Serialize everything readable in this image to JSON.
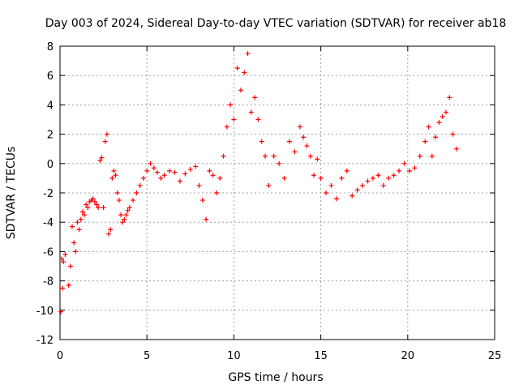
{
  "chart_data": {
    "type": "scatter",
    "title": "Day 003 of 2024, Sidereal Day-to-day VTEC variation (SDTVAR) for receiver ab18",
    "xlabel": "GPS time / hours",
    "ylabel": "SDTVAR / TECUs",
    "xlim": [
      0,
      25
    ],
    "ylim": [
      -12,
      8
    ],
    "x_ticks": [
      0,
      5,
      10,
      15,
      20,
      25
    ],
    "x_tick_labels": [
      "0",
      "5",
      "10",
      "15",
      "20",
      "25"
    ],
    "y_ticks": [
      -12,
      -10,
      -8,
      -6,
      -4,
      -2,
      0,
      2,
      4,
      6,
      8
    ],
    "y_tick_labels": [
      "-12",
      "-10",
      "-8",
      "-6",
      "-4",
      "-2",
      "0",
      "2",
      "4",
      "6",
      "8"
    ],
    "grid": true,
    "marker": "+",
    "series": [
      {
        "name": "SDTVAR",
        "color": "#ff0000",
        "x": [
          0.05,
          0.1,
          0.15,
          0.2,
          0.3,
          0.5,
          0.6,
          0.7,
          0.8,
          0.9,
          1.0,
          1.1,
          1.2,
          1.3,
          1.4,
          1.5,
          1.6,
          1.7,
          1.8,
          1.9,
          2.0,
          2.1,
          2.2,
          2.3,
          2.4,
          2.5,
          2.6,
          2.7,
          2.8,
          2.9,
          3.0,
          3.1,
          3.2,
          3.3,
          3.4,
          3.5,
          3.6,
          3.7,
          3.8,
          3.9,
          4.0,
          4.2,
          4.4,
          4.6,
          4.8,
          5.0,
          5.2,
          5.4,
          5.6,
          5.8,
          6.0,
          6.3,
          6.6,
          6.9,
          7.2,
          7.5,
          7.8,
          8.0,
          8.2,
          8.4,
          8.6,
          8.8,
          9.0,
          9.2,
          9.4,
          9.6,
          9.8,
          10.0,
          10.2,
          10.4,
          10.6,
          10.8,
          11.0,
          11.2,
          11.4,
          11.6,
          11.8,
          12.0,
          12.3,
          12.6,
          12.9,
          13.2,
          13.5,
          13.8,
          14.0,
          14.2,
          14.4,
          14.6,
          14.8,
          15.0,
          15.3,
          15.6,
          15.9,
          16.2,
          16.5,
          16.8,
          17.1,
          17.4,
          17.7,
          18.0,
          18.3,
          18.6,
          18.9,
          19.2,
          19.5,
          19.8,
          20.1,
          20.4,
          20.7,
          21.0,
          21.2,
          21.4,
          21.6,
          21.8,
          22.0,
          22.2,
          22.4,
          22.6,
          22.8
        ],
        "y": [
          -10.1,
          -6.5,
          -8.5,
          -6.7,
          -6.2,
          -8.3,
          -7.0,
          -4.3,
          -5.4,
          -6.0,
          -4.0,
          -4.5,
          -3.8,
          -3.3,
          -3.5,
          -2.8,
          -3.0,
          -2.6,
          -2.5,
          -2.4,
          -2.6,
          -2.8,
          -3.0,
          0.2,
          0.4,
          -3.0,
          1.5,
          2.0,
          -4.8,
          -4.5,
          -1.0,
          -0.5,
          -0.8,
          -2.0,
          -2.5,
          -3.5,
          -4.0,
          -3.8,
          -3.5,
          -3.2,
          -3.0,
          -2.5,
          -2.0,
          -1.5,
          -1.0,
          -0.5,
          0.0,
          -0.3,
          -0.6,
          -1.0,
          -0.8,
          -0.5,
          -0.6,
          -1.2,
          -0.7,
          -0.4,
          -0.2,
          -1.5,
          -2.5,
          -3.8,
          -0.5,
          -0.8,
          -2.0,
          -1.0,
          0.5,
          2.5,
          4.0,
          3.0,
          6.5,
          5.0,
          6.2,
          7.5,
          3.5,
          4.5,
          3.0,
          1.5,
          0.5,
          -1.5,
          0.5,
          0.0,
          -1.0,
          1.5,
          0.8,
          2.5,
          1.8,
          1.2,
          0.5,
          -0.8,
          0.3,
          -1.0,
          -2.0,
          -1.5,
          -2.4,
          -1.0,
          -0.5,
          -2.2,
          -1.8,
          -1.5,
          -1.2,
          -1.0,
          -0.8,
          -1.5,
          -1.0,
          -0.8,
          -0.5,
          0.0,
          -0.5,
          -0.3,
          0.5,
          1.5,
          2.5,
          0.5,
          1.8,
          2.8,
          3.2,
          3.5,
          4.5,
          2.0,
          1.0
        ]
      }
    ]
  }
}
